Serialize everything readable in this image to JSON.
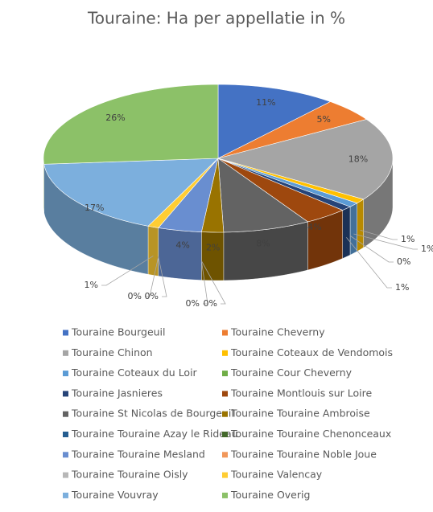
{
  "chart_data": {
    "type": "pie3d",
    "title": "Touraine: Ha per appellatie in %",
    "categories": [
      "Touraine Bourgeuil",
      "Touraine Cheverny",
      "Touraine Chinon",
      "Touraine Coteaux de Vendomois",
      "Touraine Coteaux du Loir",
      "Touraine Cour Cheverny",
      "Touraine Jasnieres",
      "Touraine Montlouis sur Loire",
      "Touraine St Nicolas de Bourgeuil",
      "Touraine Touraine Ambroise",
      "Touraine Touraine Azay le Rideau",
      "Touraine Touraine Chenonceaux",
      "Touraine Touraine Mesland",
      "Touraine Touraine Noble Joue",
      "Touraine Touraine Oisly",
      "Touraine Valencay",
      "Touraine Vouvray",
      "Touraine Overig"
    ],
    "values": [
      11,
      5,
      18,
      1,
      1,
      0,
      1,
      4,
      8,
      2,
      0,
      0,
      4,
      0,
      0,
      1,
      17,
      26
    ],
    "value_labels": [
      "11%",
      "5%",
      "18%",
      "1%",
      "1%",
      "0%",
      "1%",
      "4%",
      "8%",
      "2%",
      "0%",
      "0%",
      "4%",
      "0%",
      "0%",
      "1%",
      "17%",
      "26%"
    ],
    "colors": [
      "#4472c4",
      "#ed7d31",
      "#a5a5a5",
      "#ffc000",
      "#5b9bd5",
      "#70ad47",
      "#264478",
      "#9e480e",
      "#636363",
      "#997300",
      "#255e91",
      "#43682b",
      "#698ed0",
      "#f1975a",
      "#b7b7b7",
      "#ffcd33",
      "#7cafdd",
      "#8cc168"
    ],
    "legend": "bottom"
  }
}
